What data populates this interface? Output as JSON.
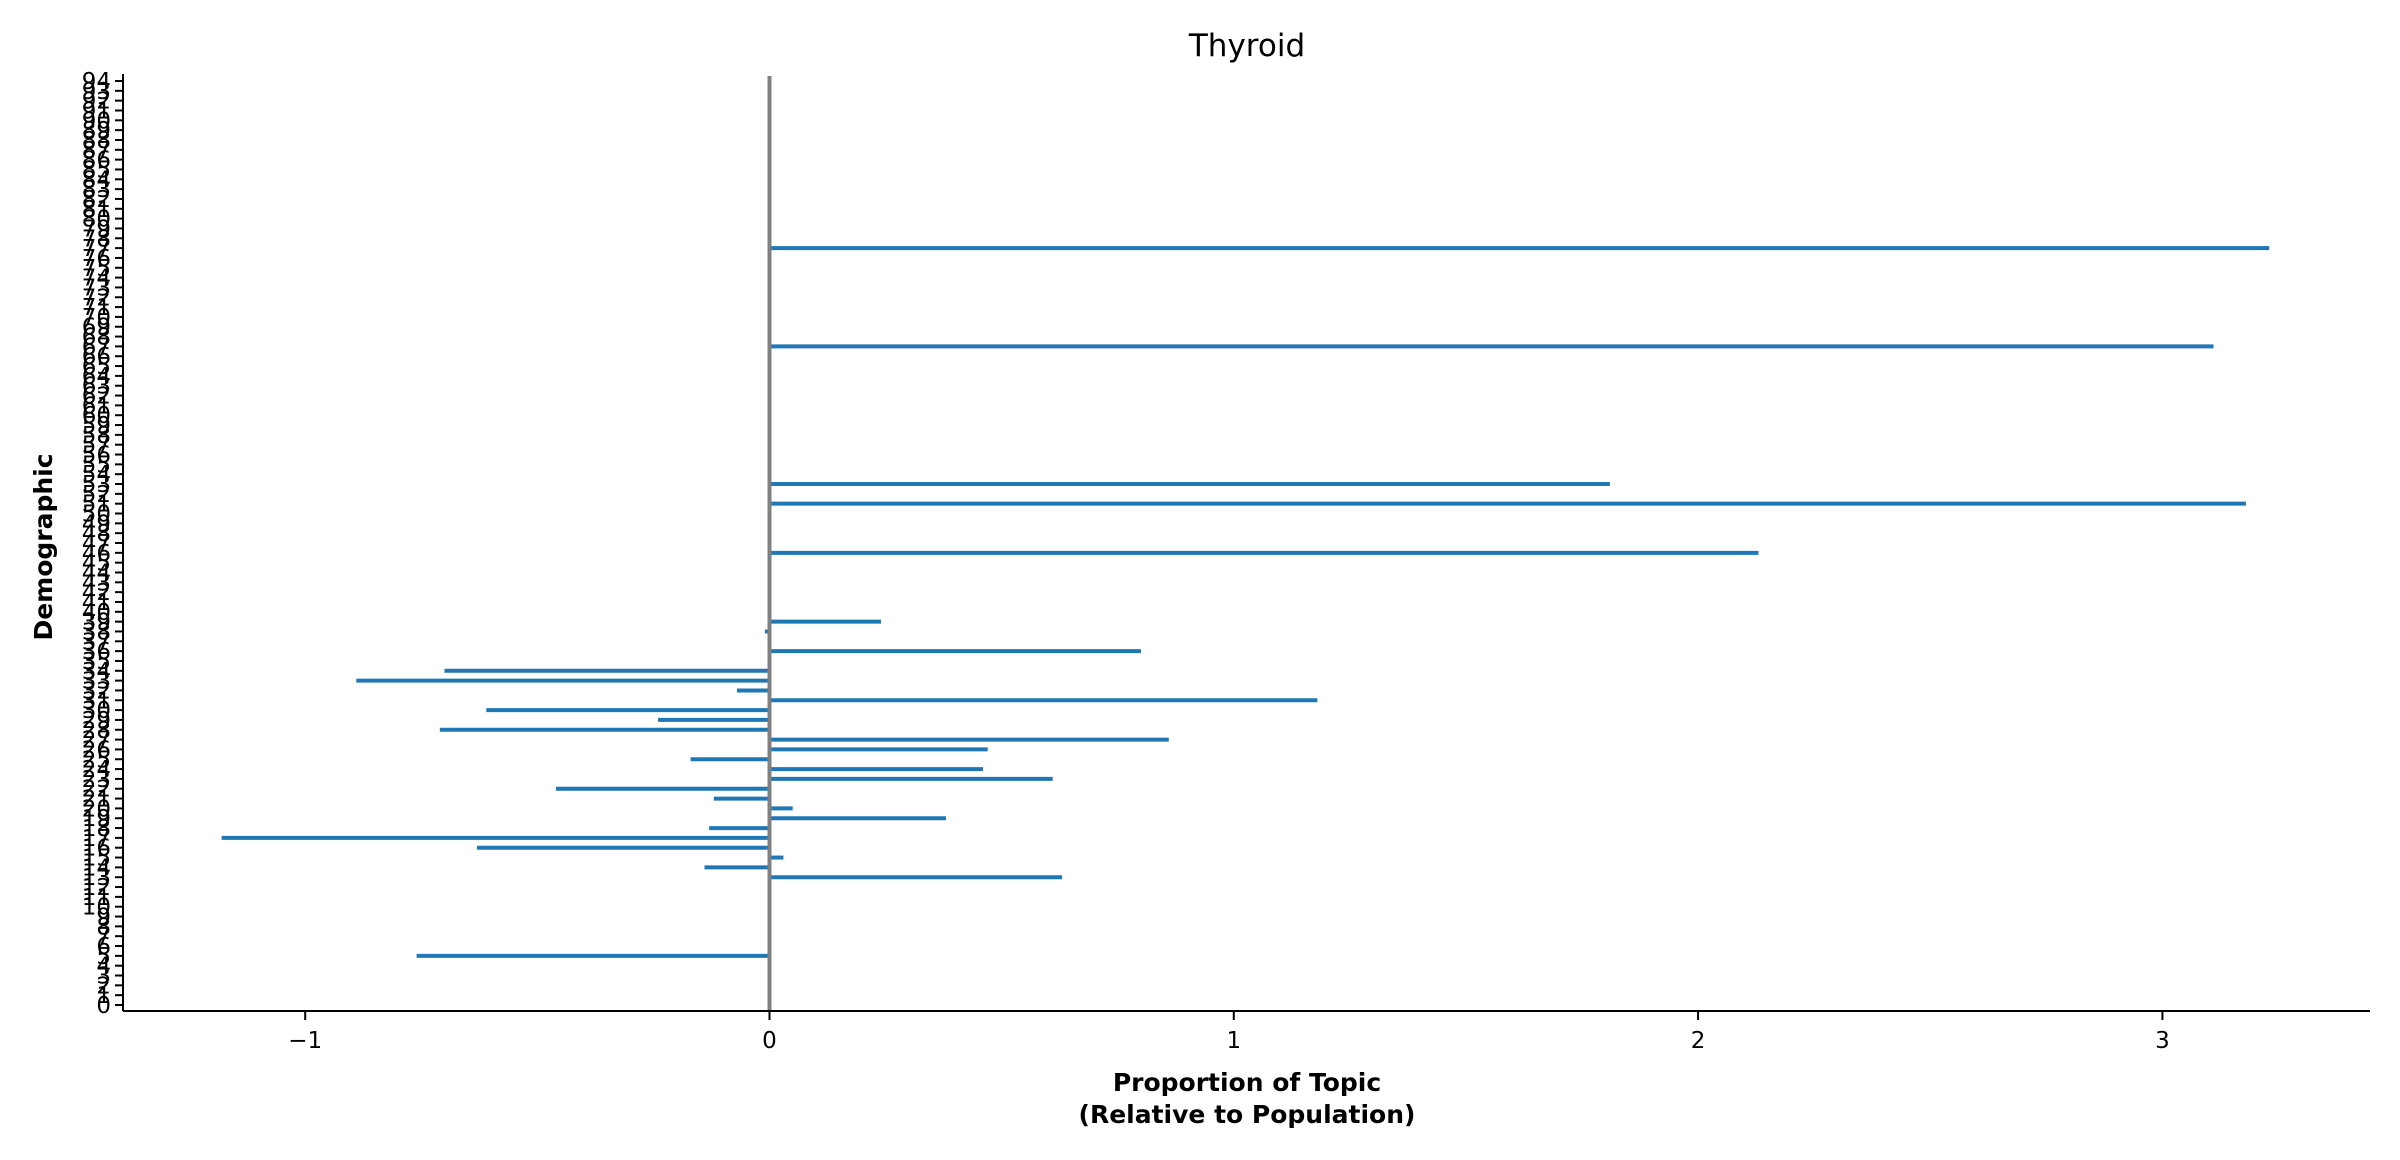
{
  "chart_data": {
    "type": "bar",
    "orientation": "horizontal",
    "title": "Thyroid",
    "xlabel_line1": "Proportion of Topic",
    "xlabel_line2": "(Relative to Population)",
    "ylabel": "Demographic",
    "xlim": [
      -1.4,
      3.45
    ],
    "ylim": [
      0,
      94
    ],
    "x_ticks": [
      -1,
      0,
      1,
      2,
      3
    ],
    "x_tick_labels": [
      "−1",
      "0",
      "1",
      "2",
      "3"
    ],
    "y_ticks": [
      0,
      1,
      2,
      3,
      4,
      5,
      6,
      7,
      8,
      9,
      10,
      11,
      12,
      13,
      14,
      15,
      16,
      17,
      18,
      19,
      20,
      21,
      22,
      23,
      24,
      25,
      26,
      27,
      28,
      29,
      30,
      31,
      32,
      33,
      34,
      35,
      36,
      37,
      38,
      39,
      40,
      41,
      42,
      43,
      44,
      45,
      46,
      47,
      48,
      49,
      50,
      51,
      52,
      53,
      54,
      55,
      56,
      57,
      58,
      59,
      60,
      61,
      62,
      63,
      64,
      65,
      66,
      67,
      68,
      69,
      70,
      71,
      72,
      73,
      74,
      75,
      76,
      77,
      78,
      79,
      80,
      81,
      82,
      83,
      84,
      85,
      86,
      87,
      88,
      89,
      90,
      91,
      92,
      93,
      94
    ],
    "grid": false,
    "legend": "none",
    "bar_color": "#1f77b4",
    "zero_line_color": "#808080",
    "bars": [
      {
        "y": 5,
        "value": -0.76
      },
      {
        "y": 13,
        "value": 0.63
      },
      {
        "y": 14,
        "value": -0.14
      },
      {
        "y": 15,
        "value": 0.03
      },
      {
        "y": 16,
        "value": -0.63
      },
      {
        "y": 17,
        "value": -1.18
      },
      {
        "y": 18,
        "value": -0.13
      },
      {
        "y": 19,
        "value": 0.38
      },
      {
        "y": 20,
        "value": 0.05
      },
      {
        "y": 21,
        "value": -0.12
      },
      {
        "y": 22,
        "value": -0.46
      },
      {
        "y": 23,
        "value": 0.61
      },
      {
        "y": 24,
        "value": 0.46
      },
      {
        "y": 25,
        "value": -0.17
      },
      {
        "y": 26,
        "value": 0.47
      },
      {
        "y": 27,
        "value": 0.86
      },
      {
        "y": 28,
        "value": -0.71
      },
      {
        "y": 29,
        "value": -0.24
      },
      {
        "y": 30,
        "value": -0.61
      },
      {
        "y": 31,
        "value": 1.18
      },
      {
        "y": 32,
        "value": -0.07
      },
      {
        "y": 33,
        "value": -0.89
      },
      {
        "y": 34,
        "value": -0.7
      },
      {
        "y": 36,
        "value": 0.8
      },
      {
        "y": 38,
        "value": -0.01
      },
      {
        "y": 39,
        "value": 0.24
      },
      {
        "y": 46,
        "value": 2.13
      },
      {
        "y": 51,
        "value": 3.18
      },
      {
        "y": 53,
        "value": 1.81
      },
      {
        "y": 67,
        "value": 3.11
      },
      {
        "y": 77,
        "value": 3.23
      }
    ]
  }
}
